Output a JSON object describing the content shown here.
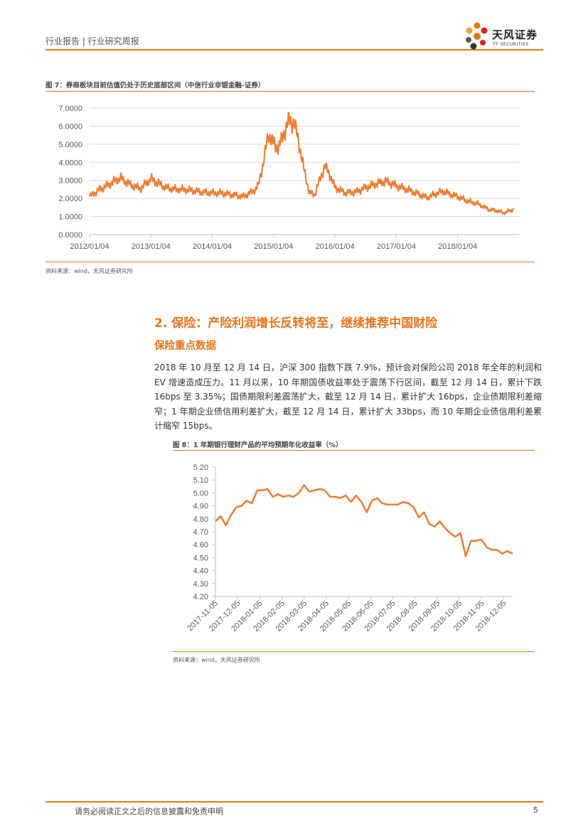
{
  "header": {
    "category": "行业报告 | 行业研究周报",
    "logo_name": "天风证券",
    "logo_sub": "TF SECURITIES"
  },
  "figure7": {
    "title": "图 7：券商板块目前估值仍处于历史底部区间（中信行业非银金融-证券）",
    "source": "资料来源：wind，天风证券研究所",
    "chart_data": {
      "type": "line",
      "title": "",
      "color": "#ed7d31",
      "y_ticks": [
        "0.0000",
        "1.0000",
        "2.0000",
        "3.0000",
        "4.0000",
        "5.0000",
        "6.0000",
        "7.0000"
      ],
      "ylim": [
        0,
        7
      ],
      "x_ticks": [
        "2012/01/04",
        "2013/01/04",
        "2014/01/04",
        "2015/01/04",
        "2016/01/04",
        "2017/01/04",
        "2018/01/04"
      ],
      "series": [
        {
          "x": [
            "2012/01",
            "2012/03",
            "2012/05",
            "2012/07",
            "2012/09",
            "2012/11",
            "2013/01",
            "2013/02",
            "2013/04",
            "2013/06",
            "2013/07",
            "2013/09",
            "2013/11",
            "2014/01",
            "2014/03",
            "2014/05",
            "2014/07",
            "2014/09",
            "2014/10",
            "2014/11",
            "2014/12",
            "2015/01",
            "2015/02",
            "2015/03",
            "2015/04",
            "2015/05",
            "2015/06",
            "2015/07",
            "2015/08",
            "2015/09",
            "2015/11",
            "2015/12",
            "2016/01",
            "2016/03",
            "2016/05",
            "2016/07",
            "2016/09",
            "2016/11",
            "2017/01",
            "2017/04",
            "2017/07",
            "2017/10",
            "2018/01",
            "2018/03",
            "2018/05",
            "2018/07",
            "2018/09",
            "2018/10",
            "2018/12"
          ],
          "y": [
            2.1,
            2.5,
            2.8,
            3.15,
            2.75,
            2.55,
            3.1,
            2.9,
            2.6,
            2.5,
            2.5,
            2.45,
            2.35,
            2.3,
            2.3,
            2.2,
            2.1,
            2.4,
            2.7,
            4.0,
            5.6,
            5.0,
            4.8,
            5.6,
            6.3,
            6.2,
            5.0,
            3.5,
            2.3,
            2.2,
            3.8,
            3.3,
            2.6,
            2.3,
            2.35,
            2.6,
            2.8,
            2.95,
            2.7,
            2.4,
            2.05,
            2.4,
            2.1,
            1.85,
            1.7,
            1.4,
            1.3,
            1.2,
            1.4
          ]
        }
      ]
    }
  },
  "section": {
    "title": "2. 保险：产险利润增长反转将至，继续推荐中国财险",
    "subtitle": "保险重点数据",
    "paragraph": "2018 年 10 月至 12 月 14 日，沪深 300 指数下跌 7.9%，预计会对保险公司 2018 年全年的利润和 EV 增速造成压力。11 月以来，10 年期国债收益率处于震荡下行区间，截至 12 月 14 日，累计下跌 16bps 至 3.35%；国债期限利差震荡扩大，截至 12 月 14 日，累计扩大 16bps，企业债期限利差缩窄；1 年期企业债信用利差扩大，截至 12 月 14 日，累计扩大 33bps，而 10 年期企业债信用利差累计缩窄 15bps。"
  },
  "figure8": {
    "title": "图 8：1 年期银行理财产品的平均预期年化收益率（%）",
    "source": "资料来源：wind，天风证券研究所",
    "chart_data": {
      "type": "line",
      "title": "",
      "color": "#ed7d31",
      "y_ticks": [
        "4.20",
        "4.30",
        "4.40",
        "4.50",
        "4.60",
        "4.70",
        "4.80",
        "4.90",
        "5.00",
        "5.10",
        "5.20"
      ],
      "ylim": [
        4.2,
        5.2
      ],
      "x_ticks": [
        "2017-11-05",
        "2017-12-05",
        "2018-01-05",
        "2018-02-05",
        "2018-03-05",
        "2018-04-05",
        "2018-05-05",
        "2018-06-05",
        "2018-07-05",
        "2018-08-05",
        "2018-09-05",
        "2018-10-05",
        "2018-11-05",
        "2018-12-05"
      ],
      "series": [
        {
          "y": [
            4.78,
            4.82,
            4.75,
            4.83,
            4.89,
            4.9,
            4.94,
            4.92,
            5.02,
            5.02,
            5.03,
            4.97,
            4.99,
            4.97,
            4.98,
            4.97,
            5.0,
            5.06,
            5.01,
            5.02,
            5.03,
            5.02,
            4.97,
            4.97,
            4.96,
            4.98,
            4.93,
            4.98,
            4.93,
            4.85,
            4.94,
            4.96,
            4.92,
            4.91,
            4.91,
            4.91,
            4.93,
            4.92,
            4.89,
            4.81,
            4.85,
            4.76,
            4.74,
            4.78,
            4.73,
            4.69,
            4.66,
            4.69,
            4.51,
            4.63,
            4.63,
            4.64,
            4.58,
            4.56,
            4.56,
            4.53,
            4.55,
            4.53
          ]
        }
      ]
    }
  },
  "footer": {
    "disclaimer": "请务必阅读正文之后的信息披露和免责申明",
    "page": "5"
  }
}
